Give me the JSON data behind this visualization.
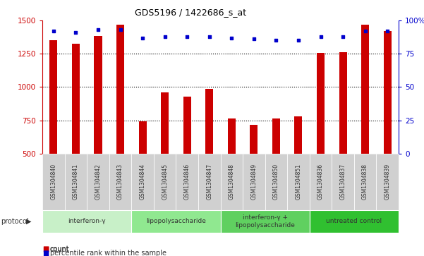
{
  "title": "GDS5196 / 1422686_s_at",
  "samples": [
    "GSM1304840",
    "GSM1304841",
    "GSM1304842",
    "GSM1304843",
    "GSM1304844",
    "GSM1304845",
    "GSM1304846",
    "GSM1304847",
    "GSM1304848",
    "GSM1304849",
    "GSM1304850",
    "GSM1304851",
    "GSM1304836",
    "GSM1304837",
    "GSM1304838",
    "GSM1304839"
  ],
  "counts": [
    1352,
    1325,
    1385,
    1470,
    745,
    960,
    930,
    985,
    762,
    718,
    762,
    782,
    1255,
    1260,
    1470,
    1420
  ],
  "percentile_ranks": [
    92,
    91,
    93,
    93,
    87,
    88,
    88,
    88,
    87,
    86,
    85,
    85,
    88,
    88,
    92,
    92
  ],
  "groups": [
    {
      "label": "interferon-γ",
      "start": 0,
      "end": 4,
      "color": "#c8f0c8"
    },
    {
      "label": "lipopolysaccharide",
      "start": 4,
      "end": 8,
      "color": "#90e890"
    },
    {
      "label": "interferon-γ +\nlipopolysaccharide",
      "start": 8,
      "end": 12,
      "color": "#60d060"
    },
    {
      "label": "untreated control",
      "start": 12,
      "end": 16,
      "color": "#30c030"
    }
  ],
  "ylim_left": [
    500,
    1500
  ],
  "ylim_right": [
    0,
    100
  ],
  "yticks_left": [
    500,
    750,
    1000,
    1250,
    1500
  ],
  "yticks_right": [
    0,
    25,
    50,
    75,
    100
  ],
  "bar_color": "#cc0000",
  "dot_color": "#0000cc",
  "grid_color": "#000000",
  "bg_color": "#ffffff",
  "plot_bg_color": "#ffffff",
  "xlabel_color": "#cc0000",
  "ylabel_right_color": "#0000cc",
  "sample_box_color": "#d0d0d0"
}
